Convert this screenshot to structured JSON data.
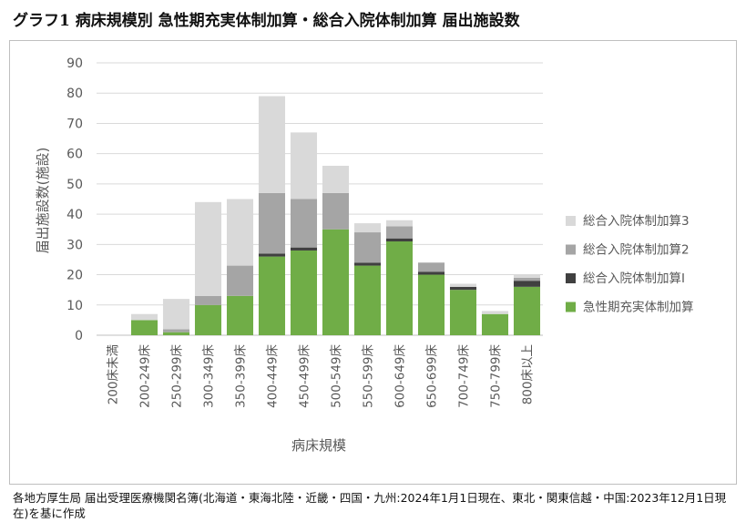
{
  "title": "グラフ1 病床規模別 急性期充実体制加算・総合入院体制加算 届出施設数",
  "footer": "各地方厚生局 届出受理医療機関名簿(北海道・東海北陸・近畿・四国・九州:2024年1月1日現在、東北・関東信越・中国:2023年12月1日現在)を基に作成",
  "chart_data": {
    "type": "bar",
    "stacked": true,
    "xlabel": "病床規模",
    "ylabel": "届出施設数(施設)",
    "ylim": [
      0,
      90
    ],
    "yticks": [
      0,
      10,
      20,
      30,
      40,
      50,
      60,
      70,
      80,
      90
    ],
    "grid": true,
    "legend_position": "right",
    "categories": [
      "200床未満",
      "200-249床",
      "250-299床",
      "300-349床",
      "350-399床",
      "400-449床",
      "450-499床",
      "500-549床",
      "550-599床",
      "600-649床",
      "650-699床",
      "700-749床",
      "750-799床",
      "800床以上"
    ],
    "series": [
      {
        "name": "急性期充実体制加算",
        "color": "#70ad47",
        "values": [
          0,
          5,
          1,
          10,
          13,
          26,
          28,
          35,
          23,
          31,
          20,
          15,
          7,
          16
        ]
      },
      {
        "name": "総合入院体制加算Ⅰ",
        "color": "#404040",
        "values": [
          0,
          0,
          0,
          0,
          0,
          1,
          1,
          0,
          1,
          1,
          1,
          1,
          0,
          2
        ]
      },
      {
        "name": "総合入院体制加算2",
        "color": "#a5a5a5",
        "values": [
          0,
          0,
          1,
          3,
          10,
          20,
          16,
          12,
          10,
          4,
          3,
          0,
          0,
          1
        ]
      },
      {
        "name": "総合入院体制加算3",
        "color": "#d9d9d9",
        "values": [
          0,
          2,
          10,
          31,
          22,
          32,
          22,
          9,
          3,
          2,
          0,
          1,
          1,
          1
        ]
      }
    ]
  }
}
